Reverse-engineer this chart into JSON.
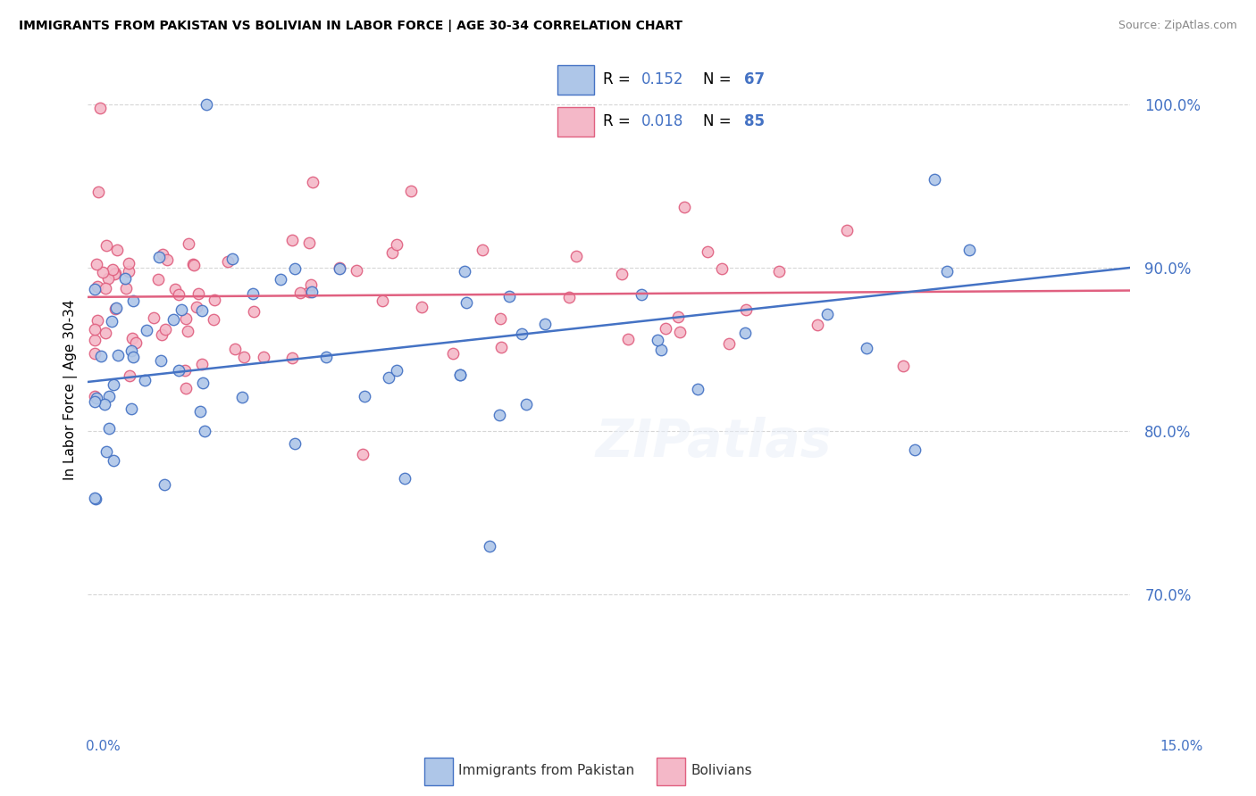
{
  "title": "IMMIGRANTS FROM PAKISTAN VS BOLIVIAN IN LABOR FORCE | AGE 30-34 CORRELATION CHART",
  "source": "Source: ZipAtlas.com",
  "ylabel": "In Labor Force | Age 30-34",
  "xmin": 0.0,
  "xmax": 0.15,
  "ymin": 0.625,
  "ymax": 1.025,
  "yticks": [
    0.7,
    0.8,
    0.9,
    1.0
  ],
  "ytick_labels": [
    "70.0%",
    "80.0%",
    "90.0%",
    "100.0%"
  ],
  "pakistan_color": "#4472c4",
  "bolivian_color": "#e06080",
  "pakistan_scatter_color": "#aec6e8",
  "bolivian_scatter_color": "#f4b8c8",
  "pakistan_R": "0.152",
  "pakistan_N": "67",
  "bolivian_R": "0.018",
  "bolivian_N": "85",
  "pakistan_line_y0": 0.83,
  "pakistan_line_y1": 0.9,
  "bolivian_line_y0": 0.882,
  "bolivian_line_y1": 0.886,
  "background_color": "#ffffff",
  "grid_color": "#cccccc",
  "legend_label_pak": "Immigrants from Pakistan",
  "legend_label_bol": "Bolivians",
  "legend_text_color": "#4472c4",
  "xtick_color": "#4472c4",
  "ytick_color": "#4472c4"
}
